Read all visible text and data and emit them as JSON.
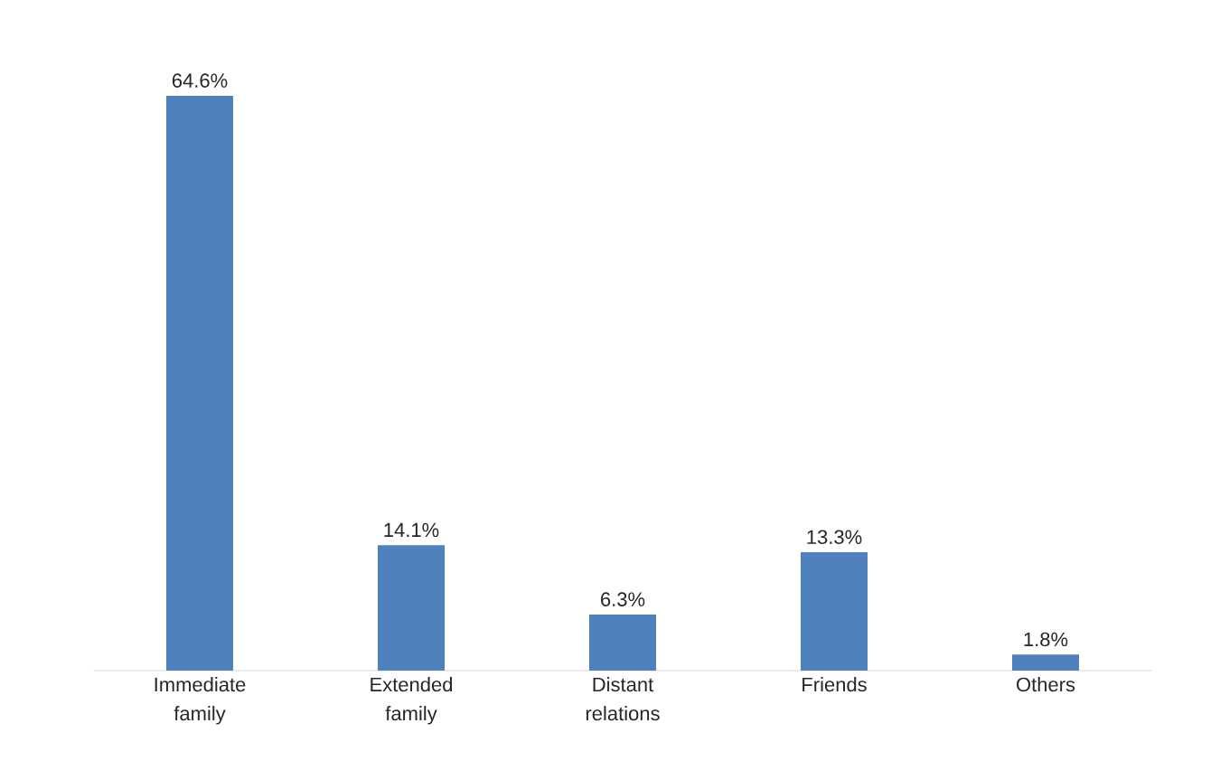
{
  "chart_data": {
    "type": "bar",
    "categories": [
      "Immediate family",
      "Extended family",
      "Distant relations",
      "Friends",
      "Others"
    ],
    "values": [
      64.6,
      14.1,
      6.3,
      13.3,
      1.8
    ],
    "value_labels": [
      "64.6%",
      "14.1%",
      "6.3%",
      "13.3%",
      "1.8%"
    ],
    "color": "#4f81bd"
  }
}
